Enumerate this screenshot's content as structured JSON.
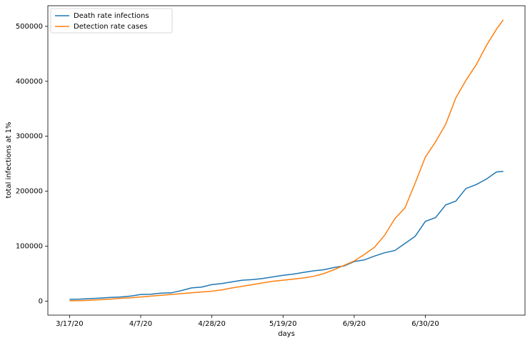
{
  "chart_data": {
    "type": "line",
    "xlabel": "days",
    "ylabel": "total infections at 1%",
    "x": [
      0,
      3,
      6,
      9,
      12,
      15,
      18,
      21,
      24,
      27,
      30,
      33,
      36,
      39,
      42,
      45,
      48,
      51,
      54,
      57,
      60,
      63,
      66,
      69,
      72,
      75,
      78,
      81,
      84,
      87,
      90,
      93,
      96,
      99,
      102,
      105,
      108,
      111,
      114,
      117,
      120,
      123,
      126,
      128
    ],
    "series": [
      {
        "name": "Death rate infections",
        "color": "#1f77b4",
        "values": [
          3000,
          3500,
          4500,
          5500,
          6500,
          7500,
          9000,
          12000,
          12500,
          14500,
          15000,
          19000,
          24000,
          25500,
          30000,
          32000,
          35000,
          38000,
          39000,
          41000,
          44000,
          47000,
          49000,
          52000,
          55000,
          57000,
          61000,
          64000,
          72000,
          75000,
          82000,
          88000,
          92000,
          105000,
          118000,
          145000,
          152000,
          175000,
          182000,
          205000,
          212000,
          222000,
          235000,
          236000
        ]
      },
      {
        "name": "Detection rate cases",
        "color": "#ff7f0e",
        "values": [
          500,
          800,
          1500,
          2500,
          3500,
          5000,
          6000,
          7500,
          9000,
          10500,
          12000,
          13500,
          15000,
          16500,
          18000,
          20500,
          24000,
          27000,
          30000,
          33000,
          36000,
          38000,
          40000,
          42000,
          45000,
          50000,
          57000,
          65000,
          73000,
          85000,
          98000,
          120000,
          150000,
          170000,
          215000,
          262000,
          290000,
          322000,
          370000,
          402000,
          430000,
          465000,
          495000,
          512000
        ]
      }
    ],
    "xlim": [
      -6.4,
      134.4
    ],
    "xticks": [
      {
        "value": 0,
        "label": "3/17/20"
      },
      {
        "value": 21,
        "label": "4/7/20"
      },
      {
        "value": 42,
        "label": "4/28/20"
      },
      {
        "value": 63,
        "label": "5/19/20"
      },
      {
        "value": 84,
        "label": "6/9/20"
      },
      {
        "value": 105,
        "label": "6/30/20"
      }
    ],
    "ylim": [
      -25600,
      537600
    ],
    "yticks": [
      0,
      100000,
      200000,
      300000,
      400000,
      500000
    ],
    "legend": "upper left"
  }
}
